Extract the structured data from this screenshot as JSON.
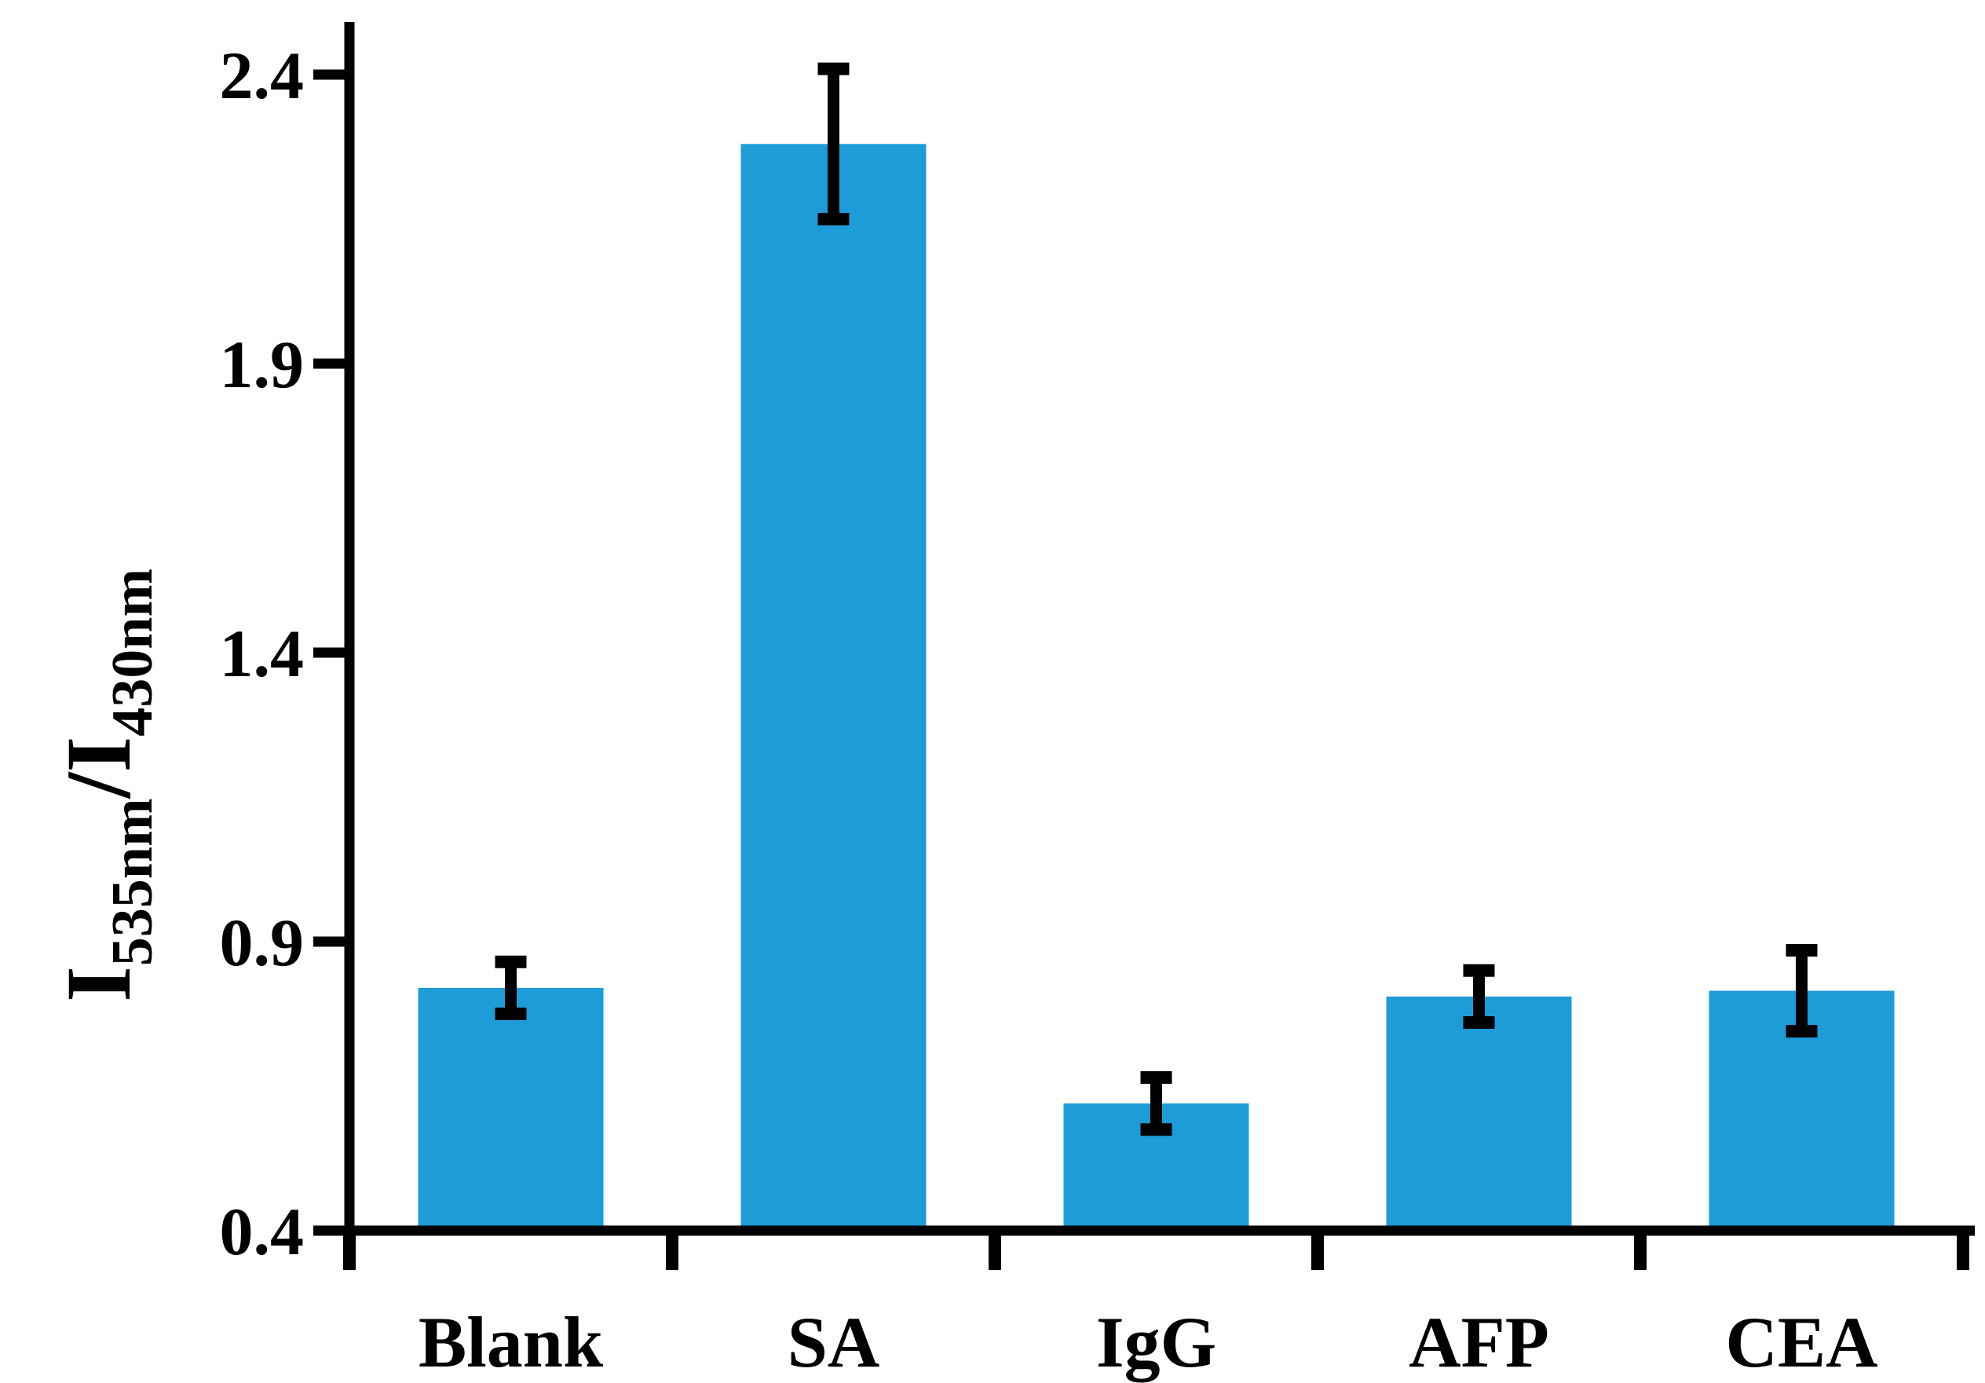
{
  "chart_data": {
    "type": "bar",
    "categories": [
      "Blank",
      "SA",
      "IgG",
      "AFP",
      "CEA"
    ],
    "values": [
      0.82,
      2.28,
      0.62,
      0.805,
      0.815
    ],
    "errors": [
      0.045,
      0.13,
      0.045,
      0.045,
      0.07
    ],
    "ylabel": {
      "main1": "I",
      "sub1": "535nm",
      "slash": "/",
      "main2": "I",
      "sub2": "430nm"
    },
    "ylim": [
      0.4,
      2.5
    ],
    "yticks": [
      0.4,
      0.9,
      1.4,
      1.9,
      2.4
    ],
    "ytick_labels": [
      "0.4",
      "0.9",
      "1.4",
      "1.9",
      "2.4"
    ],
    "grid": false,
    "bar_color": "#1E9CD7",
    "axis_color": "#000000"
  }
}
